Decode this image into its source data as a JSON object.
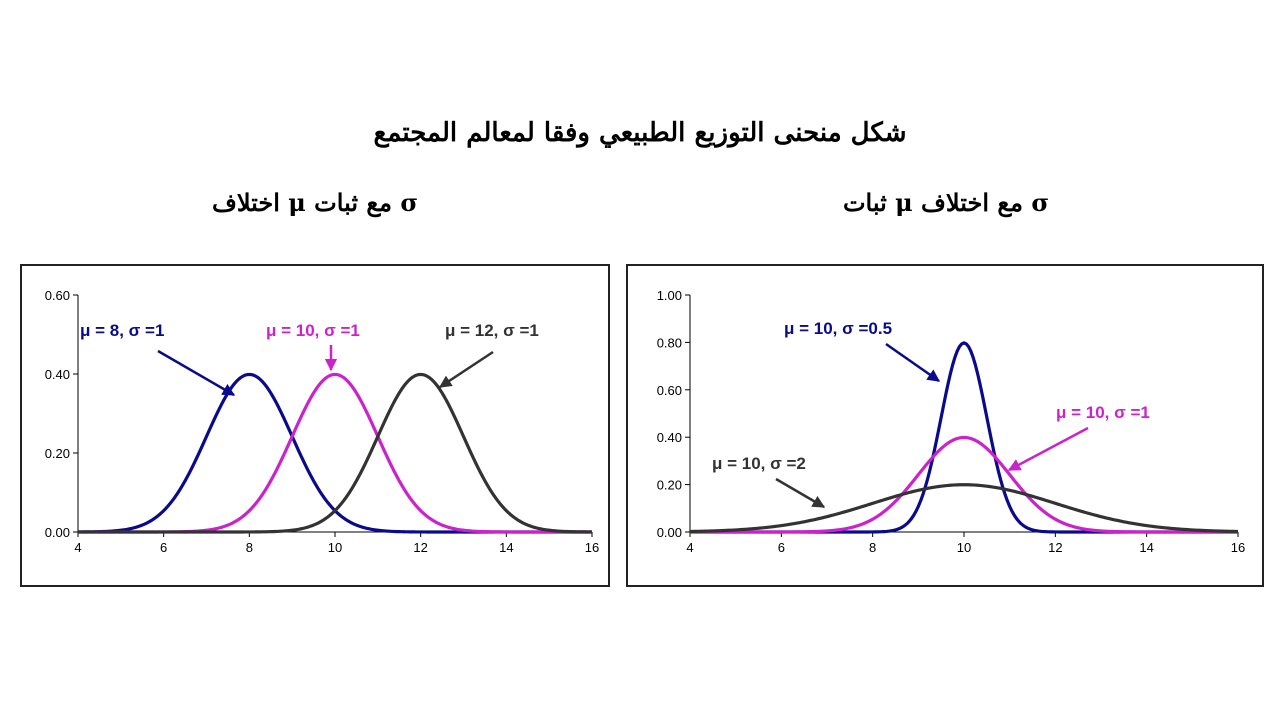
{
  "header": {
    "title": "شكل منحنى التوزيع الطبيعي وفقا لمعالم المجتمع"
  },
  "chart_data": [
    {
      "type": "line",
      "title": "اختلاف μ مع ثبات σ",
      "xlim": [
        4,
        16
      ],
      "ylim": [
        0,
        0.6
      ],
      "xticks": [
        "4",
        "6",
        "8",
        "10",
        "12",
        "14",
        "16"
      ],
      "yticks": [
        "0.00",
        "0.20",
        "0.40",
        "0.60"
      ],
      "grid": false,
      "series": [
        {
          "name": "μ = 8, σ =1",
          "mu": 8,
          "sigma": 1,
          "color": "#0a0a8c"
        },
        {
          "name": "μ = 10, σ =1",
          "mu": 10,
          "sigma": 1,
          "color": "#cc22cc"
        },
        {
          "name": "μ = 12, σ =1",
          "mu": 12,
          "sigma": 1,
          "color": "#333333"
        }
      ]
    },
    {
      "type": "line",
      "title": "ثبات μ مع اختلاف σ",
      "xlim": [
        4,
        16
      ],
      "ylim": [
        0,
        1.0
      ],
      "xticks": [
        "4",
        "6",
        "8",
        "10",
        "12",
        "14",
        "16"
      ],
      "yticks": [
        "0.00",
        "0.20",
        "0.40",
        "0.60",
        "0.80",
        "1.00"
      ],
      "grid": false,
      "series": [
        {
          "name": "μ = 10, σ =0.5",
          "mu": 10,
          "sigma": 0.5,
          "color": "#0a0a8c"
        },
        {
          "name": "μ = 10, σ =1",
          "mu": 10,
          "sigma": 1,
          "color": "#cc22cc"
        },
        {
          "name": "μ = 10, σ =2",
          "mu": 10,
          "sigma": 2,
          "color": "#333333"
        }
      ]
    }
  ]
}
